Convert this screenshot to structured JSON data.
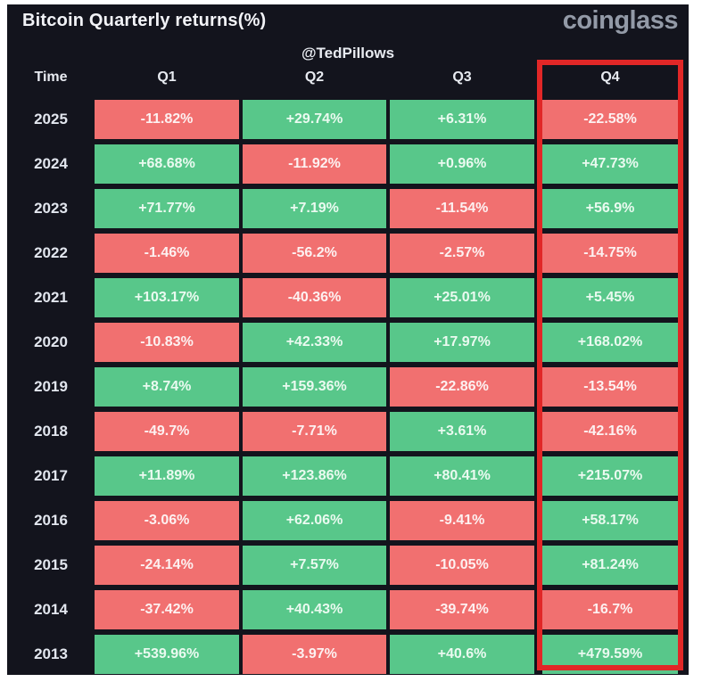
{
  "header": {
    "title": "Bitcoin Quarterly returns(%)",
    "logo": "coinglass",
    "watermark": "@TedPillows"
  },
  "table": {
    "columns": [
      "Time",
      "Q1",
      "Q2",
      "Q3",
      "Q4"
    ],
    "highlighted_column": "Q4",
    "rows": [
      {
        "year": "2025",
        "values": [
          "-11.82%",
          "+29.74%",
          "+6.31%",
          "-22.58%"
        ]
      },
      {
        "year": "2024",
        "values": [
          "+68.68%",
          "-11.92%",
          "+0.96%",
          "+47.73%"
        ]
      },
      {
        "year": "2023",
        "values": [
          "+71.77%",
          "+7.19%",
          "-11.54%",
          "+56.9%"
        ]
      },
      {
        "year": "2022",
        "values": [
          "-1.46%",
          "-56.2%",
          "-2.57%",
          "-14.75%"
        ]
      },
      {
        "year": "2021",
        "values": [
          "+103.17%",
          "-40.36%",
          "+25.01%",
          "+5.45%"
        ]
      },
      {
        "year": "2020",
        "values": [
          "-10.83%",
          "+42.33%",
          "+17.97%",
          "+168.02%"
        ]
      },
      {
        "year": "2019",
        "values": [
          "+8.74%",
          "+159.36%",
          "-22.86%",
          "-13.54%"
        ]
      },
      {
        "year": "2018",
        "values": [
          "-49.7%",
          "-7.71%",
          "+3.61%",
          "-42.16%"
        ]
      },
      {
        "year": "2017",
        "values": [
          "+11.89%",
          "+123.86%",
          "+80.41%",
          "+215.07%"
        ]
      },
      {
        "year": "2016",
        "values": [
          "-3.06%",
          "+62.06%",
          "-9.41%",
          "+58.17%"
        ]
      },
      {
        "year": "2015",
        "values": [
          "-24.14%",
          "+7.57%",
          "-10.05%",
          "+81.24%"
        ]
      },
      {
        "year": "2014",
        "values": [
          "-37.42%",
          "+40.43%",
          "-39.74%",
          "-16.7%"
        ]
      },
      {
        "year": "2013",
        "values": [
          "+539.96%",
          "-3.97%",
          "+40.6%",
          "+479.59%"
        ]
      }
    ]
  },
  "colors": {
    "positive_cell": "#58c78a",
    "negative_cell": "#f17070",
    "panel_background": "#13141d",
    "highlight_border": "#e12727",
    "logo_gray": "#939aa7"
  },
  "chart_data": {
    "type": "heatmap",
    "title": "Bitcoin Quarterly returns(%)",
    "x_categories": [
      "Q1",
      "Q2",
      "Q3",
      "Q4"
    ],
    "y_categories": [
      "2025",
      "2024",
      "2023",
      "2022",
      "2021",
      "2020",
      "2019",
      "2018",
      "2017",
      "2016",
      "2015",
      "2014",
      "2013"
    ],
    "values_pct": [
      [
        -11.82,
        29.74,
        6.31,
        -22.58
      ],
      [
        68.68,
        -11.92,
        0.96,
        47.73
      ],
      [
        71.77,
        7.19,
        -11.54,
        56.9
      ],
      [
        -1.46,
        -56.2,
        -2.57,
        -14.75
      ],
      [
        103.17,
        -40.36,
        25.01,
        5.45
      ],
      [
        -10.83,
        42.33,
        17.97,
        168.02
      ],
      [
        8.74,
        159.36,
        -22.86,
        -13.54
      ],
      [
        -49.7,
        -7.71,
        3.61,
        -42.16
      ],
      [
        11.89,
        123.86,
        80.41,
        215.07
      ],
      [
        -3.06,
        62.06,
        -9.41,
        58.17
      ],
      [
        -24.14,
        7.57,
        -10.05,
        81.24
      ],
      [
        -37.42,
        40.43,
        -39.74,
        -16.7
      ],
      [
        539.96,
        -3.97,
        40.6,
        479.59
      ]
    ],
    "color_rule": "green = positive return, red = negative return",
    "annotations": [
      "Q4 column outlined with red rectangle",
      "@TedPillows watermark"
    ],
    "legend_position": "none",
    "grid": false
  }
}
